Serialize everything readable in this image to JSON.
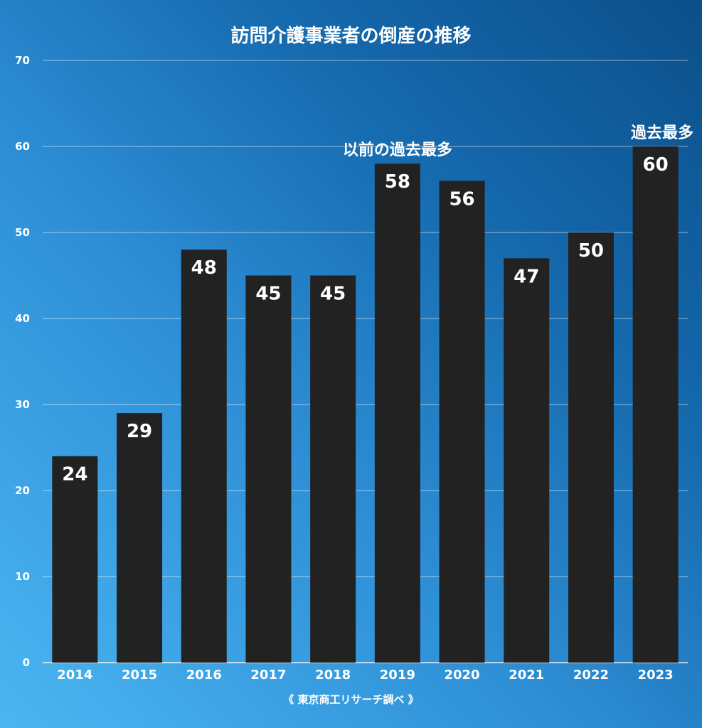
{
  "source": "《 東京商工リサーチ調べ 》",
  "colors": {
    "bar": "#222222",
    "text": "#ffffff",
    "background_top": "#0b4f8a",
    "background_bottom": "#4bb6f2"
  },
  "chart_data": {
    "type": "bar",
    "title": "訪問介護事業者の倒産の推移",
    "xlabel": "",
    "ylabel": "",
    "categories": [
      "2014",
      "2015",
      "2016",
      "2017",
      "2018",
      "2019",
      "2020",
      "2021",
      "2022",
      "2023"
    ],
    "values": [
      24,
      29,
      48,
      45,
      45,
      58,
      56,
      47,
      50,
      60
    ],
    "ylim": [
      0,
      70
    ],
    "yticks": [
      0,
      10,
      20,
      30,
      40,
      50,
      60,
      70
    ],
    "grid": true,
    "legend": "none",
    "annotations": [
      {
        "category": "2019",
        "text": "以前の過去最多"
      },
      {
        "category": "2023",
        "text": "過去最多"
      }
    ]
  }
}
